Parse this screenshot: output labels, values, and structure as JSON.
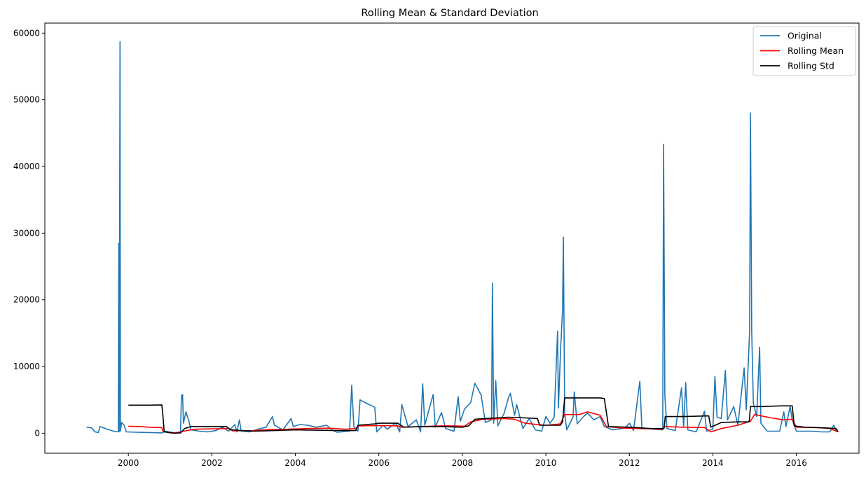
{
  "chart_data": {
    "type": "line",
    "title": "Rolling Mean & Standard Deviation",
    "xlabel": "",
    "ylabel": "",
    "x_ticks": [
      "2000",
      "2002",
      "2004",
      "2006",
      "2008",
      "2010",
      "2012",
      "2014",
      "2016"
    ],
    "x_tick_years": [
      2000,
      2002,
      2004,
      2006,
      2008,
      2010,
      2012,
      2014,
      2016
    ],
    "y_ticks": [
      0,
      10000,
      20000,
      30000,
      40000,
      50000,
      60000
    ],
    "xlim": [
      1998.0,
      2017.5
    ],
    "ylim": [
      -3000,
      61500
    ],
    "grid": false,
    "legend_position": "top-right",
    "series": [
      {
        "name": "Original",
        "color": "#1f77b4",
        "points": [
          [
            1999.0,
            900
          ],
          [
            1999.12,
            800
          ],
          [
            1999.2,
            200
          ],
          [
            1999.28,
            100
          ],
          [
            1999.32,
            1000
          ],
          [
            1999.5,
            600
          ],
          [
            1999.7,
            200
          ],
          [
            1999.76,
            300
          ],
          [
            1999.77,
            28500
          ],
          [
            1999.78,
            200
          ],
          [
            1999.8,
            58700
          ],
          [
            1999.81,
            300
          ],
          [
            1999.84,
            1600
          ],
          [
            1999.9,
            1200
          ],
          [
            1999.95,
            200
          ],
          [
            2000.2,
            150
          ],
          [
            2000.5,
            100
          ],
          [
            2000.8,
            50
          ],
          [
            2000.9,
            300
          ],
          [
            2001.1,
            50
          ],
          [
            2001.25,
            200
          ],
          [
            2001.27,
            5600
          ],
          [
            2001.3,
            5800
          ],
          [
            2001.32,
            1500
          ],
          [
            2001.38,
            3200
          ],
          [
            2001.45,
            1800
          ],
          [
            2001.5,
            500
          ],
          [
            2001.7,
            300
          ],
          [
            2001.9,
            200
          ],
          [
            2002.1,
            400
          ],
          [
            2002.25,
            900
          ],
          [
            2002.4,
            300
          ],
          [
            2002.55,
            1300
          ],
          [
            2002.6,
            200
          ],
          [
            2002.66,
            2000
          ],
          [
            2002.7,
            300
          ],
          [
            2002.9,
            200
          ],
          [
            2003.1,
            600
          ],
          [
            2003.3,
            900
          ],
          [
            2003.45,
            2500
          ],
          [
            2003.5,
            1200
          ],
          [
            2003.7,
            500
          ],
          [
            2003.9,
            2200
          ],
          [
            2003.95,
            1000
          ],
          [
            2004.1,
            1300
          ],
          [
            2004.3,
            1200
          ],
          [
            2004.5,
            900
          ],
          [
            2004.75,
            1200
          ],
          [
            2004.9,
            400
          ],
          [
            2005.0,
            150
          ],
          [
            2005.3,
            300
          ],
          [
            2005.35,
            7200
          ],
          [
            2005.4,
            1000
          ],
          [
            2005.5,
            300
          ],
          [
            2005.55,
            5000
          ],
          [
            2005.7,
            4500
          ],
          [
            2005.9,
            3900
          ],
          [
            2005.95,
            200
          ],
          [
            2006.1,
            1200
          ],
          [
            2006.2,
            600
          ],
          [
            2006.4,
            1500
          ],
          [
            2006.5,
            200
          ],
          [
            2006.55,
            4300
          ],
          [
            2006.7,
            1000
          ],
          [
            2006.9,
            2000
          ],
          [
            2007.0,
            200
          ],
          [
            2007.05,
            7400
          ],
          [
            2007.1,
            1200
          ],
          [
            2007.3,
            5800
          ],
          [
            2007.35,
            900
          ],
          [
            2007.5,
            3100
          ],
          [
            2007.6,
            700
          ],
          [
            2007.8,
            300
          ],
          [
            2007.9,
            5500
          ],
          [
            2007.95,
            1800
          ],
          [
            2008.05,
            3600
          ],
          [
            2008.2,
            4600
          ],
          [
            2008.3,
            7500
          ],
          [
            2008.45,
            5700
          ],
          [
            2008.55,
            1600
          ],
          [
            2008.7,
            2000
          ],
          [
            2008.72,
            22500
          ],
          [
            2008.75,
            1500
          ],
          [
            2008.8,
            7900
          ],
          [
            2008.85,
            1100
          ],
          [
            2009.0,
            3000
          ],
          [
            2009.1,
            5200
          ],
          [
            2009.15,
            6000
          ],
          [
            2009.25,
            2700
          ],
          [
            2009.3,
            4300
          ],
          [
            2009.45,
            700
          ],
          [
            2009.6,
            2200
          ],
          [
            2009.75,
            500
          ],
          [
            2009.9,
            300
          ],
          [
            2010.0,
            2500
          ],
          [
            2010.1,
            1500
          ],
          [
            2010.2,
            2400
          ],
          [
            2010.28,
            15300
          ],
          [
            2010.3,
            3800
          ],
          [
            2010.35,
            12000
          ],
          [
            2010.4,
            18600
          ],
          [
            2010.42,
            29400
          ],
          [
            2010.45,
            3000
          ],
          [
            2010.5,
            500
          ],
          [
            2010.65,
            2400
          ],
          [
            2010.68,
            6200
          ],
          [
            2010.75,
            1400
          ],
          [
            2010.9,
            2500
          ],
          [
            2011.0,
            3000
          ],
          [
            2011.15,
            2000
          ],
          [
            2011.3,
            2500
          ],
          [
            2011.4,
            1000
          ],
          [
            2011.6,
            500
          ],
          [
            2011.9,
            800
          ],
          [
            2012.0,
            1500
          ],
          [
            2012.1,
            400
          ],
          [
            2012.25,
            7800
          ],
          [
            2012.3,
            800
          ],
          [
            2012.6,
            600
          ],
          [
            2012.8,
            500
          ],
          [
            2012.82,
            43300
          ],
          [
            2012.85,
            5600
          ],
          [
            2012.9,
            700
          ],
          [
            2013.1,
            400
          ],
          [
            2013.25,
            6800
          ],
          [
            2013.3,
            900
          ],
          [
            2013.35,
            7600
          ],
          [
            2013.4,
            500
          ],
          [
            2013.6,
            200
          ],
          [
            2013.8,
            3300
          ],
          [
            2013.85,
            300
          ],
          [
            2014.0,
            600
          ],
          [
            2014.05,
            8500
          ],
          [
            2014.1,
            2400
          ],
          [
            2014.2,
            2200
          ],
          [
            2014.3,
            9400
          ],
          [
            2014.35,
            2000
          ],
          [
            2014.5,
            4000
          ],
          [
            2014.6,
            1200
          ],
          [
            2014.75,
            9800
          ],
          [
            2014.8,
            3500
          ],
          [
            2014.88,
            15300
          ],
          [
            2014.9,
            48000
          ],
          [
            2014.93,
            15300
          ],
          [
            2014.97,
            4500
          ],
          [
            2015.05,
            2500
          ],
          [
            2015.12,
            12900
          ],
          [
            2015.15,
            1500
          ],
          [
            2015.3,
            300
          ],
          [
            2015.6,
            300
          ],
          [
            2015.7,
            3200
          ],
          [
            2015.75,
            1000
          ],
          [
            2015.85,
            4000
          ],
          [
            2015.9,
            2000
          ],
          [
            2016.0,
            300
          ],
          [
            2016.4,
            300
          ],
          [
            2016.6,
            200
          ],
          [
            2016.8,
            200
          ],
          [
            2016.9,
            1200
          ],
          [
            2016.95,
            400
          ],
          [
            2017.0,
            200
          ]
        ]
      },
      {
        "name": "Rolling Mean",
        "color": "#ff0000",
        "points": [
          [
            2000.0,
            1050
          ],
          [
            2000.3,
            1000
          ],
          [
            2000.5,
            900
          ],
          [
            2000.8,
            850
          ],
          [
            2000.83,
            300
          ],
          [
            2001.0,
            50
          ],
          [
            2001.2,
            100
          ],
          [
            2001.4,
            400
          ],
          [
            2001.6,
            600
          ],
          [
            2002.0,
            650
          ],
          [
            2002.4,
            700
          ],
          [
            2002.5,
            350
          ],
          [
            2003.0,
            400
          ],
          [
            2003.4,
            550
          ],
          [
            2003.8,
            600
          ],
          [
            2004.3,
            700
          ],
          [
            2004.8,
            750
          ],
          [
            2005.2,
            600
          ],
          [
            2005.45,
            700
          ],
          [
            2005.5,
            1100
          ],
          [
            2006.0,
            1150
          ],
          [
            2006.45,
            1100
          ],
          [
            2006.55,
            900
          ],
          [
            2007.0,
            1000
          ],
          [
            2007.5,
            1100
          ],
          [
            2007.8,
            1100
          ],
          [
            2008.05,
            1050
          ],
          [
            2008.2,
            1700
          ],
          [
            2008.5,
            2100
          ],
          [
            2008.8,
            2150
          ],
          [
            2009.0,
            2200
          ],
          [
            2009.25,
            2100
          ],
          [
            2009.5,
            1500
          ],
          [
            2009.8,
            1300
          ],
          [
            2010.0,
            1200
          ],
          [
            2010.35,
            1400
          ],
          [
            2010.45,
            2800
          ],
          [
            2010.8,
            2800
          ],
          [
            2011.0,
            3200
          ],
          [
            2011.3,
            2700
          ],
          [
            2011.45,
            1000
          ],
          [
            2011.8,
            800
          ],
          [
            2012.2,
            700
          ],
          [
            2012.5,
            650
          ],
          [
            2012.8,
            600
          ],
          [
            2012.85,
            1000
          ],
          [
            2013.3,
            900
          ],
          [
            2013.8,
            850
          ],
          [
            2013.95,
            200
          ],
          [
            2014.2,
            700
          ],
          [
            2014.6,
            1200
          ],
          [
            2014.9,
            1800
          ],
          [
            2015.0,
            2800
          ],
          [
            2015.4,
            2300
          ],
          [
            2015.7,
            2000
          ],
          [
            2015.9,
            2100
          ],
          [
            2016.0,
            900
          ],
          [
            2016.5,
            850
          ],
          [
            2016.8,
            700
          ],
          [
            2017.0,
            200
          ]
        ]
      },
      {
        "name": "Rolling Std",
        "color": "#000000",
        "points": [
          [
            2000.0,
            4200
          ],
          [
            2000.5,
            4200
          ],
          [
            2000.8,
            4250
          ],
          [
            2000.82,
            3300
          ],
          [
            2000.86,
            200
          ],
          [
            2001.1,
            0
          ],
          [
            2001.25,
            50
          ],
          [
            2001.35,
            700
          ],
          [
            2001.5,
            1000
          ],
          [
            2002.0,
            1000
          ],
          [
            2002.35,
            1000
          ],
          [
            2002.45,
            500
          ],
          [
            2003.0,
            300
          ],
          [
            2003.5,
            400
          ],
          [
            2004.0,
            500
          ],
          [
            2004.5,
            450
          ],
          [
            2005.0,
            400
          ],
          [
            2005.45,
            400
          ],
          [
            2005.5,
            1200
          ],
          [
            2005.9,
            1400
          ],
          [
            2006.0,
            1500
          ],
          [
            2006.45,
            1500
          ],
          [
            2006.6,
            900
          ],
          [
            2007.0,
            1000
          ],
          [
            2007.5,
            1000
          ],
          [
            2008.0,
            900
          ],
          [
            2008.15,
            1100
          ],
          [
            2008.3,
            2100
          ],
          [
            2008.8,
            2300
          ],
          [
            2009.1,
            2400
          ],
          [
            2009.5,
            2300
          ],
          [
            2009.8,
            2200
          ],
          [
            2009.85,
            1200
          ],
          [
            2010.35,
            1200
          ],
          [
            2010.4,
            1700
          ],
          [
            2010.45,
            5300
          ],
          [
            2010.8,
            5300
          ],
          [
            2011.3,
            5300
          ],
          [
            2011.4,
            5200
          ],
          [
            2011.5,
            1000
          ],
          [
            2012.0,
            900
          ],
          [
            2012.5,
            700
          ],
          [
            2012.83,
            700
          ],
          [
            2012.86,
            2500
          ],
          [
            2013.3,
            2500
          ],
          [
            2013.9,
            2600
          ],
          [
            2013.95,
            900
          ],
          [
            2014.2,
            1600
          ],
          [
            2014.6,
            1700
          ],
          [
            2014.87,
            1700
          ],
          [
            2014.9,
            4000
          ],
          [
            2015.2,
            4000
          ],
          [
            2015.6,
            4100
          ],
          [
            2015.9,
            4100
          ],
          [
            2015.95,
            1100
          ],
          [
            2016.2,
            900
          ],
          [
            2016.7,
            800
          ],
          [
            2016.95,
            700
          ],
          [
            2017.0,
            200
          ]
        ]
      }
    ]
  }
}
